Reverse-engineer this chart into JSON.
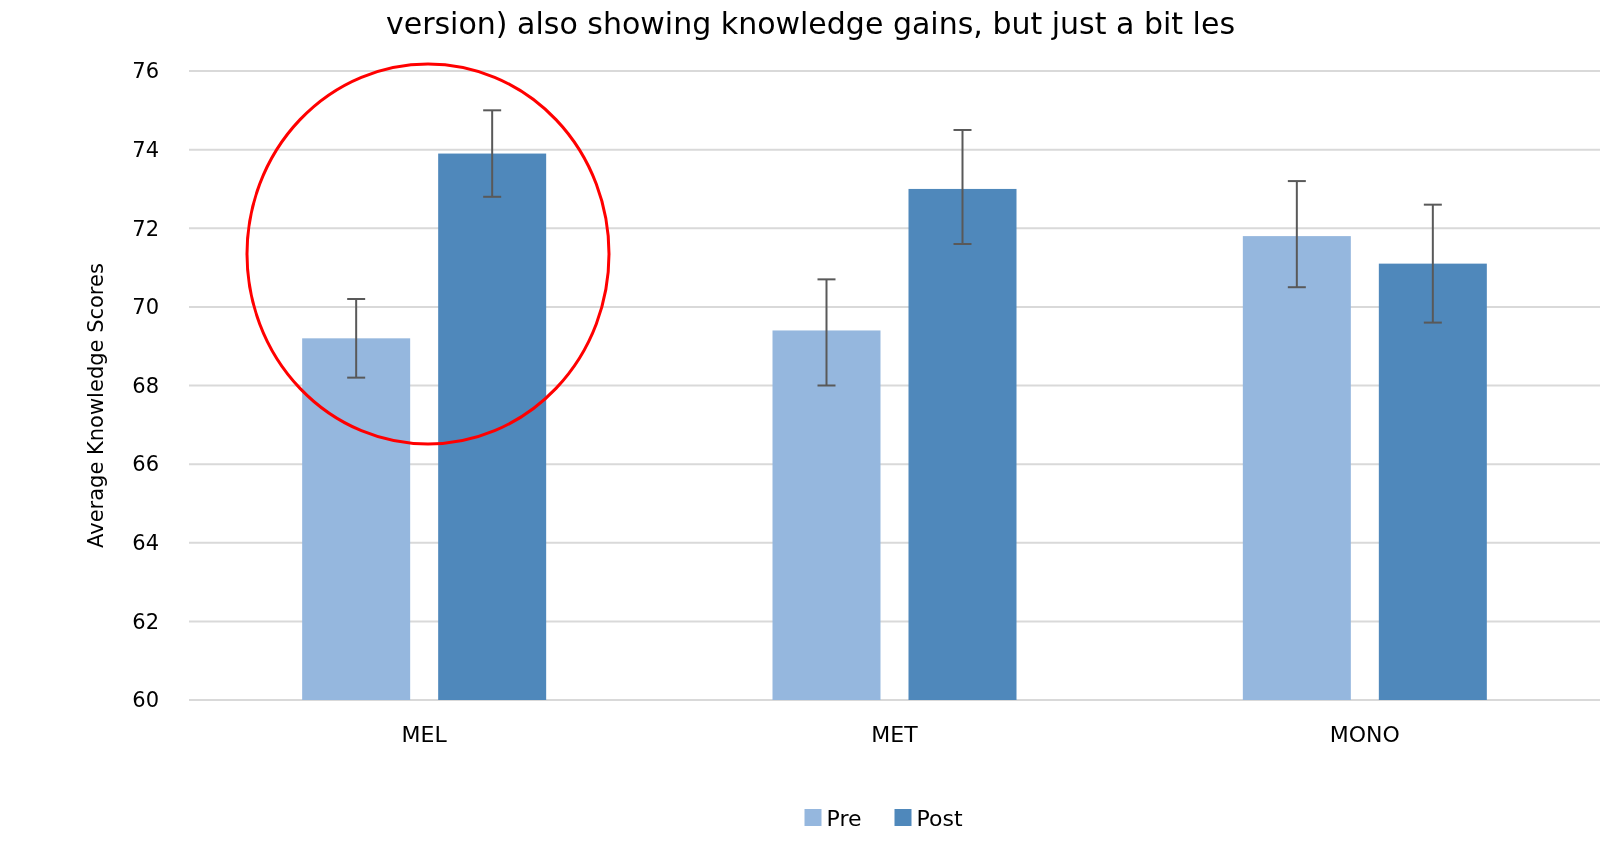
{
  "chart_data": {
    "type": "bar",
    "ylabel": "Average Knowledge Scores",
    "categories": [
      "MEL",
      "MET",
      "MONO"
    ],
    "series": [
      {
        "name": "Pre",
        "color": "#95b7de",
        "values": [
          69.2,
          69.4,
          71.8
        ],
        "errors": [
          [
            68.2,
            70.2
          ],
          [
            68.0,
            70.7
          ],
          [
            70.5,
            73.2
          ]
        ]
      },
      {
        "name": "Post",
        "color": "#4f88bb",
        "values": [
          73.9,
          73.0,
          71.1
        ],
        "errors": [
          [
            72.8,
            75.0
          ],
          [
            71.6,
            74.5
          ],
          [
            69.6,
            72.6
          ]
        ]
      }
    ],
    "ylim": [
      60,
      76
    ],
    "yticks": [
      60,
      62,
      64,
      66,
      68,
      70,
      72,
      74,
      76
    ],
    "grid": "y",
    "legend": "bottom",
    "annotations": [
      "version) also showing knowledge gains, but just a bit les"
    ]
  }
}
